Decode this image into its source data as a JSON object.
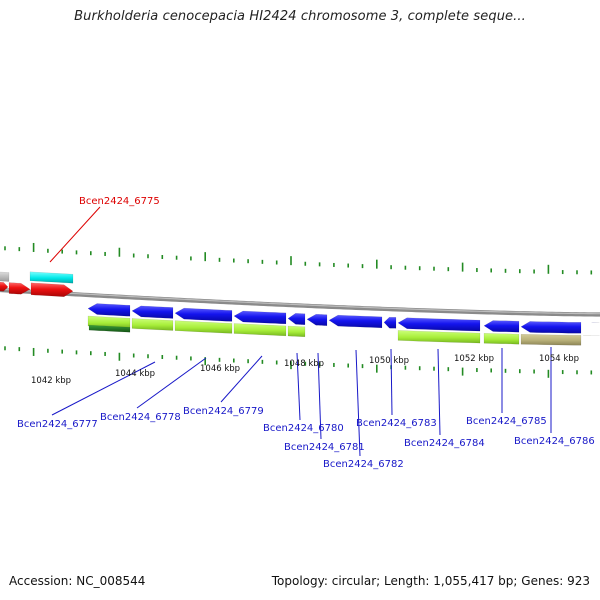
{
  "title": "Burkholderia cenocepacia HI2424 chromosome 3, complete seque...",
  "footer": {
    "accession_label": "Accession:",
    "accession_value": "NC_008544",
    "topology_label": "Topology:",
    "topology_value": "circular",
    "length_label": "Length:",
    "length_value": "1,055,417 bp",
    "genes_label": "Genes:",
    "genes_value": "923"
  },
  "axis_labels": [
    "1042 kbp",
    "1044 kbp",
    "1046 kbp",
    "1048 kbp",
    "1050 kbp",
    "1052 kbp",
    "1054 kbp"
  ],
  "highlighted_gene": "Bcen2424_6775",
  "gene_labels": [
    "Bcen2424_6777",
    "Bcen2424_6778",
    "Bcen2424_6779",
    "Bcen2424_6780",
    "Bcen2424_6781",
    "Bcen2424_6782",
    "Bcen2424_6783",
    "Bcen2424_6784",
    "Bcen2424_6785",
    "Bcen2424_6786"
  ],
  "colors": {
    "gene_blue": "#1212e6",
    "gene_red": "#ee1111",
    "highlight_red": "#dd0000",
    "label_blue": "#1818c8",
    "cyan": "#00e8e8",
    "lime": "#aaf040",
    "olive": "#b8b078",
    "dark_green": "#1f7a1f",
    "grey": "#b8b8b8",
    "tick_green": "#238b23",
    "backbone": "#8a8a8a"
  }
}
